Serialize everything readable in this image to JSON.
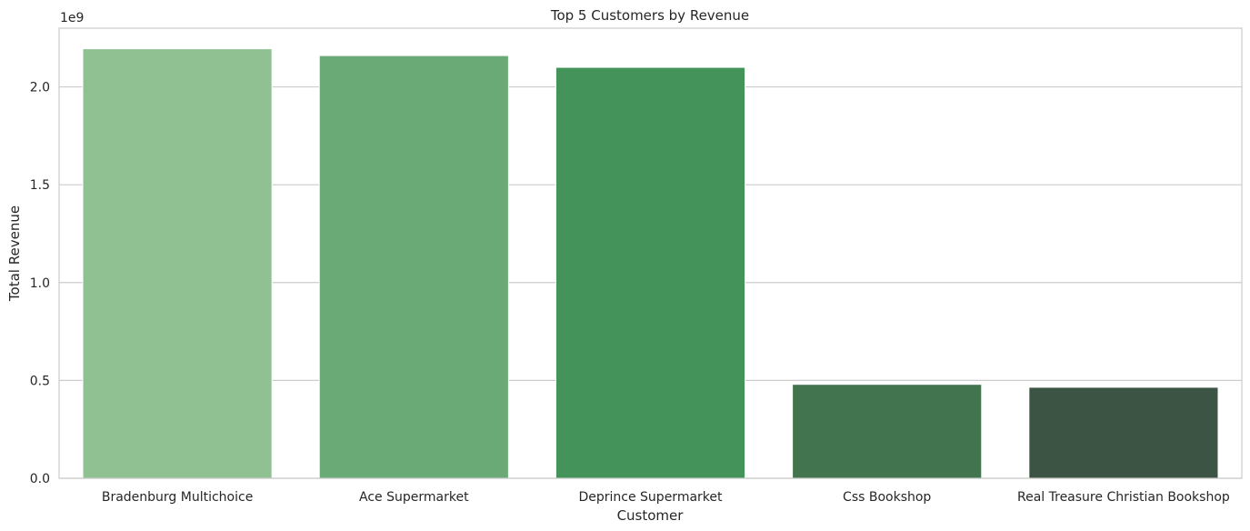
{
  "chart_data": {
    "type": "bar",
    "title": "Top 5 Customers by Revenue",
    "xlabel": "Customer",
    "ylabel": "Total Revenue",
    "y_scale_label": "1e9",
    "categories": [
      "Bradenburg Multichoice",
      "Ace Supermarket",
      "Deprince Supermarket",
      "Css Bookshop",
      "Real Treasure Christian Bookshop"
    ],
    "values": [
      2195000000,
      2160000000,
      2100000000,
      480000000,
      465000000
    ],
    "colors": [
      "#90c193",
      "#6aaa77",
      "#44935a",
      "#41744f",
      "#3b5443"
    ],
    "ylim": [
      0,
      2300000000
    ],
    "yticks": [
      0,
      500000000,
      1000000000,
      1500000000,
      2000000000
    ],
    "ytick_labels": [
      "0.0",
      "0.5",
      "1.0",
      "1.5",
      "2.0"
    ],
    "grid": "horizontal"
  }
}
